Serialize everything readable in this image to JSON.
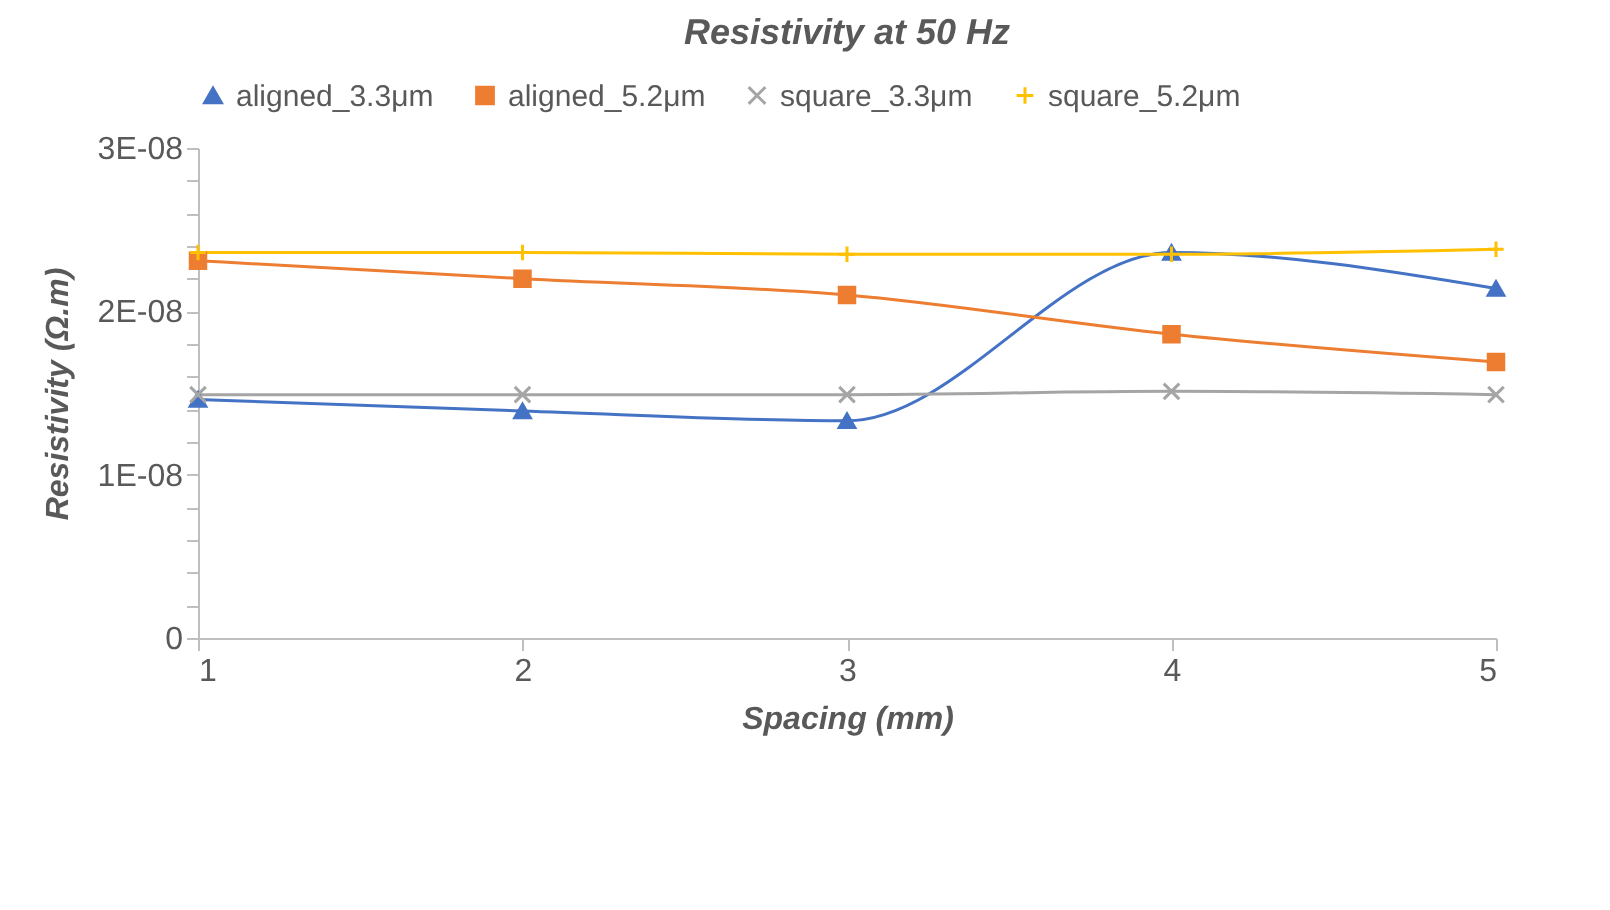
{
  "chart_data": {
    "type": "line",
    "title": "Resistivity at 50 Hz",
    "xlabel": "Spacing (mm)",
    "ylabel": "Resistivity (Ω.m)",
    "x": [
      1,
      2,
      3,
      4,
      5
    ],
    "xlim": [
      1,
      5
    ],
    "xticks": [
      1,
      2,
      3,
      4,
      5
    ],
    "ylim": [
      0,
      3e-08
    ],
    "yticks": [
      {
        "value": 0,
        "label": "0"
      },
      {
        "value": 2e-09,
        "label": null
      },
      {
        "value": 4e-09,
        "label": null
      },
      {
        "value": 6e-09,
        "label": null
      },
      {
        "value": 8e-09,
        "label": null
      },
      {
        "value": 1e-08,
        "label": "1E-08"
      },
      {
        "value": 1.2e-08,
        "label": null
      },
      {
        "value": 1.4e-08,
        "label": null
      },
      {
        "value": 1.6e-08,
        "label": null
      },
      {
        "value": 1.8e-08,
        "label": null
      },
      {
        "value": 2e-08,
        "label": "2E-08"
      },
      {
        "value": 2.2e-08,
        "label": null
      },
      {
        "value": 2.4e-08,
        "label": null
      },
      {
        "value": 2.6e-08,
        "label": null
      },
      {
        "value": 2.8e-08,
        "label": null
      },
      {
        "value": 3e-08,
        "label": "3E-08"
      }
    ],
    "grid": false,
    "legend": "top",
    "line_style": "solid",
    "series": [
      {
        "name": "aligned_3.3μm",
        "color": "#4472c4",
        "marker": "triangle",
        "values": [
          1.46e-08,
          1.39e-08,
          1.33e-08,
          2.36e-08,
          2.14e-08
        ]
      },
      {
        "name": "aligned_5.2μm",
        "color": "#ed7d31",
        "marker": "square",
        "values": [
          2.31e-08,
          2.2e-08,
          2.1e-08,
          1.86e-08,
          1.69e-08
        ]
      },
      {
        "name": "square_3.3μm",
        "color": "#a5a5a5",
        "marker": "x",
        "values": [
          1.49e-08,
          1.49e-08,
          1.49e-08,
          1.51e-08,
          1.49e-08
        ]
      },
      {
        "name": "square_5.2μm",
        "color": "#ffc000",
        "marker": "cross",
        "values": [
          2.36e-08,
          2.36e-08,
          2.35e-08,
          2.35e-08,
          2.38e-08
        ]
      }
    ]
  }
}
